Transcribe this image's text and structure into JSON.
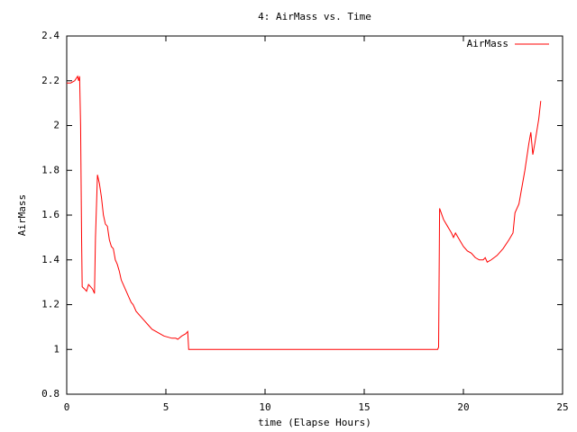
{
  "chart_data": {
    "type": "line",
    "title": "4: AirMass vs. Time",
    "x_label": "time (Elapse Hours)",
    "y_label": "AirMass",
    "x": [
      0,
      0.2,
      0.4,
      0.55,
      0.6,
      0.65,
      0.7,
      0.75,
      0.78,
      0.9,
      1.0,
      1.1,
      1.2,
      1.3,
      1.4,
      1.45,
      1.55,
      1.65,
      1.75,
      1.85,
      1.95,
      2.05,
      2.15,
      2.25,
      2.35,
      2.45,
      2.55,
      2.65,
      2.75,
      2.85,
      2.95,
      3.05,
      3.15,
      3.25,
      3.35,
      3.5,
      3.7,
      3.9,
      4.1,
      4.3,
      4.5,
      4.7,
      4.9,
      5.1,
      5.3,
      5.5,
      5.6,
      5.8,
      6.0,
      6.1,
      6.15,
      18.7,
      18.75,
      18.8,
      19.0,
      19.2,
      19.4,
      19.5,
      19.6,
      19.8,
      20.0,
      20.2,
      20.4,
      20.6,
      20.8,
      21.0,
      21.1,
      21.2,
      21.4,
      21.7,
      22.0,
      22.3,
      22.5,
      22.6,
      22.8,
      22.9,
      23.1,
      23.3,
      23.4,
      23.5,
      23.6,
      23.8,
      23.9
    ],
    "series": [
      {
        "name": "AirMass",
        "color": "#ff0000",
        "values": [
          2.19,
          2.19,
          2.2,
          2.22,
          2.2,
          2.22,
          2.0,
          1.5,
          1.28,
          1.27,
          1.26,
          1.29,
          1.28,
          1.27,
          1.25,
          1.5,
          1.78,
          1.74,
          1.68,
          1.6,
          1.56,
          1.55,
          1.49,
          1.46,
          1.45,
          1.4,
          1.38,
          1.35,
          1.31,
          1.29,
          1.27,
          1.25,
          1.23,
          1.21,
          1.2,
          1.17,
          1.15,
          1.13,
          1.11,
          1.09,
          1.08,
          1.07,
          1.06,
          1.055,
          1.05,
          1.05,
          1.045,
          1.06,
          1.07,
          1.08,
          1.0,
          1.0,
          1.01,
          1.63,
          1.58,
          1.55,
          1.52,
          1.5,
          1.52,
          1.49,
          1.46,
          1.44,
          1.43,
          1.41,
          1.4,
          1.4,
          1.41,
          1.39,
          1.4,
          1.42,
          1.45,
          1.49,
          1.52,
          1.61,
          1.65,
          1.7,
          1.8,
          1.92,
          1.97,
          1.87,
          1.92,
          2.03,
          2.11
        ]
      }
    ],
    "xlim": [
      0,
      25
    ],
    "xticks": [
      0,
      5,
      10,
      15,
      20,
      25
    ],
    "ylim": [
      0.8,
      2.4
    ],
    "yticks": [
      0.8,
      1,
      1.2,
      1.4,
      1.6,
      1.8,
      2,
      2.2,
      2.4
    ],
    "legend": "top right",
    "grid": false
  }
}
